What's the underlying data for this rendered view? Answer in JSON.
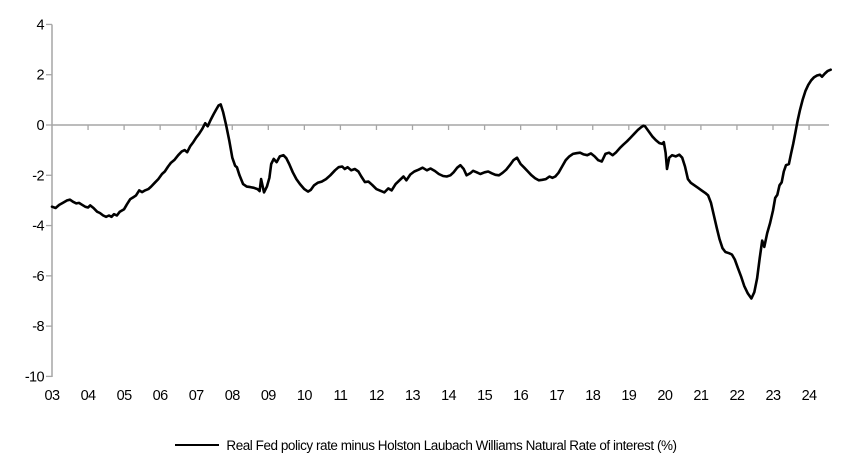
{
  "figure": {
    "background": "#ffffff"
  },
  "chart_data": {
    "type": "line",
    "title": "",
    "xlabel": "",
    "ylabel": "",
    "ylim": [
      -10,
      4
    ],
    "xlim_years": [
      2003.0,
      2024.6
    ],
    "grid": "off",
    "category_axis_at_zero": true,
    "y_ticks": [
      4,
      2,
      0,
      -2,
      -4,
      -6,
      -8,
      -10
    ],
    "x_tick_labels": [
      "03",
      "04",
      "05",
      "06",
      "07",
      "08",
      "09",
      "10",
      "11",
      "12",
      "13",
      "14",
      "15",
      "16",
      "17",
      "18",
      "19",
      "20",
      "21",
      "22",
      "23",
      "24"
    ],
    "legend": {
      "position": "bottom-center",
      "entries": [
        "Real Fed policy rate minus Holston Laubach Williams Natural Rate of interest (%)"
      ]
    },
    "colors": {
      "series": "#000000",
      "axis": "#a6a6a6",
      "text": "#000000",
      "background": "#ffffff"
    },
    "series": [
      {
        "name": "Real Fed policy rate minus Holston Laubach Williams Natural Rate of interest (%)",
        "points": [
          [
            2003.0,
            -3.25
          ],
          [
            2003.1,
            -3.3
          ],
          [
            2003.2,
            -3.18
          ],
          [
            2003.3,
            -3.1
          ],
          [
            2003.42,
            -3.0
          ],
          [
            2003.5,
            -2.97
          ],
          [
            2003.58,
            -3.05
          ],
          [
            2003.67,
            -3.12
          ],
          [
            2003.75,
            -3.1
          ],
          [
            2003.83,
            -3.17
          ],
          [
            2003.92,
            -3.25
          ],
          [
            2004.0,
            -3.28
          ],
          [
            2004.06,
            -3.2
          ],
          [
            2004.15,
            -3.3
          ],
          [
            2004.25,
            -3.45
          ],
          [
            2004.33,
            -3.5
          ],
          [
            2004.42,
            -3.6
          ],
          [
            2004.5,
            -3.65
          ],
          [
            2004.58,
            -3.6
          ],
          [
            2004.65,
            -3.65
          ],
          [
            2004.72,
            -3.55
          ],
          [
            2004.8,
            -3.6
          ],
          [
            2004.88,
            -3.45
          ],
          [
            2005.0,
            -3.35
          ],
          [
            2005.08,
            -3.15
          ],
          [
            2005.17,
            -2.95
          ],
          [
            2005.25,
            -2.88
          ],
          [
            2005.33,
            -2.8
          ],
          [
            2005.42,
            -2.6
          ],
          [
            2005.5,
            -2.67
          ],
          [
            2005.58,
            -2.6
          ],
          [
            2005.67,
            -2.55
          ],
          [
            2005.75,
            -2.45
          ],
          [
            2005.85,
            -2.3
          ],
          [
            2005.95,
            -2.15
          ],
          [
            2006.05,
            -1.95
          ],
          [
            2006.13,
            -1.85
          ],
          [
            2006.22,
            -1.65
          ],
          [
            2006.3,
            -1.5
          ],
          [
            2006.4,
            -1.38
          ],
          [
            2006.5,
            -1.2
          ],
          [
            2006.6,
            -1.05
          ],
          [
            2006.68,
            -1.0
          ],
          [
            2006.75,
            -1.08
          ],
          [
            2006.83,
            -0.85
          ],
          [
            2006.92,
            -0.68
          ],
          [
            2007.0,
            -0.5
          ],
          [
            2007.08,
            -0.35
          ],
          [
            2007.17,
            -0.15
          ],
          [
            2007.25,
            0.07
          ],
          [
            2007.32,
            -0.05
          ],
          [
            2007.4,
            0.2
          ],
          [
            2007.48,
            0.42
          ],
          [
            2007.55,
            0.6
          ],
          [
            2007.62,
            0.78
          ],
          [
            2007.68,
            0.82
          ],
          [
            2007.75,
            0.5
          ],
          [
            2007.83,
            0.0
          ],
          [
            2007.92,
            -0.65
          ],
          [
            2008.0,
            -1.3
          ],
          [
            2008.08,
            -1.62
          ],
          [
            2008.13,
            -1.68
          ],
          [
            2008.2,
            -2.0
          ],
          [
            2008.3,
            -2.35
          ],
          [
            2008.4,
            -2.45
          ],
          [
            2008.5,
            -2.47
          ],
          [
            2008.6,
            -2.5
          ],
          [
            2008.7,
            -2.55
          ],
          [
            2008.76,
            -2.63
          ],
          [
            2008.8,
            -2.15
          ],
          [
            2008.88,
            -2.68
          ],
          [
            2008.96,
            -2.45
          ],
          [
            2009.03,
            -2.1
          ],
          [
            2009.08,
            -1.55
          ],
          [
            2009.15,
            -1.35
          ],
          [
            2009.23,
            -1.48
          ],
          [
            2009.32,
            -1.25
          ],
          [
            2009.42,
            -1.2
          ],
          [
            2009.5,
            -1.32
          ],
          [
            2009.58,
            -1.55
          ],
          [
            2009.68,
            -1.88
          ],
          [
            2009.78,
            -2.15
          ],
          [
            2009.88,
            -2.35
          ],
          [
            2010.0,
            -2.55
          ],
          [
            2010.1,
            -2.65
          ],
          [
            2010.18,
            -2.58
          ],
          [
            2010.27,
            -2.4
          ],
          [
            2010.37,
            -2.3
          ],
          [
            2010.48,
            -2.25
          ],
          [
            2010.6,
            -2.15
          ],
          [
            2010.72,
            -2.0
          ],
          [
            2010.85,
            -1.8
          ],
          [
            2010.95,
            -1.68
          ],
          [
            2011.05,
            -1.65
          ],
          [
            2011.12,
            -1.75
          ],
          [
            2011.2,
            -1.68
          ],
          [
            2011.3,
            -1.8
          ],
          [
            2011.4,
            -1.75
          ],
          [
            2011.5,
            -1.85
          ],
          [
            2011.58,
            -2.05
          ],
          [
            2011.68,
            -2.27
          ],
          [
            2011.78,
            -2.25
          ],
          [
            2011.88,
            -2.38
          ],
          [
            2012.0,
            -2.55
          ],
          [
            2012.12,
            -2.62
          ],
          [
            2012.22,
            -2.68
          ],
          [
            2012.33,
            -2.52
          ],
          [
            2012.42,
            -2.6
          ],
          [
            2012.53,
            -2.35
          ],
          [
            2012.64,
            -2.2
          ],
          [
            2012.75,
            -2.05
          ],
          [
            2012.83,
            -2.2
          ],
          [
            2012.94,
            -1.97
          ],
          [
            2013.05,
            -1.85
          ],
          [
            2013.17,
            -1.78
          ],
          [
            2013.28,
            -1.7
          ],
          [
            2013.4,
            -1.8
          ],
          [
            2013.5,
            -1.73
          ],
          [
            2013.62,
            -1.83
          ],
          [
            2013.73,
            -1.95
          ],
          [
            2013.85,
            -2.03
          ],
          [
            2013.95,
            -2.05
          ],
          [
            2014.05,
            -2.0
          ],
          [
            2014.14,
            -1.88
          ],
          [
            2014.24,
            -1.7
          ],
          [
            2014.33,
            -1.6
          ],
          [
            2014.42,
            -1.75
          ],
          [
            2014.5,
            -2.0
          ],
          [
            2014.6,
            -1.92
          ],
          [
            2014.68,
            -1.82
          ],
          [
            2014.78,
            -1.88
          ],
          [
            2014.88,
            -1.95
          ],
          [
            2015.0,
            -1.88
          ],
          [
            2015.1,
            -1.85
          ],
          [
            2015.2,
            -1.92
          ],
          [
            2015.3,
            -1.98
          ],
          [
            2015.4,
            -2.0
          ],
          [
            2015.5,
            -1.9
          ],
          [
            2015.6,
            -1.78
          ],
          [
            2015.7,
            -1.6
          ],
          [
            2015.8,
            -1.4
          ],
          [
            2015.9,
            -1.3
          ],
          [
            2016.0,
            -1.55
          ],
          [
            2016.1,
            -1.7
          ],
          [
            2016.2,
            -1.85
          ],
          [
            2016.3,
            -2.0
          ],
          [
            2016.4,
            -2.12
          ],
          [
            2016.5,
            -2.2
          ],
          [
            2016.6,
            -2.18
          ],
          [
            2016.7,
            -2.15
          ],
          [
            2016.8,
            -2.05
          ],
          [
            2016.88,
            -2.1
          ],
          [
            2016.96,
            -2.05
          ],
          [
            2017.05,
            -1.9
          ],
          [
            2017.15,
            -1.65
          ],
          [
            2017.25,
            -1.4
          ],
          [
            2017.35,
            -1.25
          ],
          [
            2017.45,
            -1.15
          ],
          [
            2017.55,
            -1.12
          ],
          [
            2017.65,
            -1.1
          ],
          [
            2017.75,
            -1.17
          ],
          [
            2017.85,
            -1.2
          ],
          [
            2017.95,
            -1.13
          ],
          [
            2018.05,
            -1.25
          ],
          [
            2018.15,
            -1.4
          ],
          [
            2018.25,
            -1.45
          ],
          [
            2018.35,
            -1.15
          ],
          [
            2018.45,
            -1.1
          ],
          [
            2018.55,
            -1.2
          ],
          [
            2018.65,
            -1.08
          ],
          [
            2018.75,
            -0.92
          ],
          [
            2018.85,
            -0.78
          ],
          [
            2018.95,
            -0.65
          ],
          [
            2019.05,
            -0.5
          ],
          [
            2019.15,
            -0.35
          ],
          [
            2019.25,
            -0.2
          ],
          [
            2019.35,
            -0.08
          ],
          [
            2019.4,
            -0.03
          ],
          [
            2019.45,
            -0.05
          ],
          [
            2019.55,
            -0.25
          ],
          [
            2019.65,
            -0.45
          ],
          [
            2019.75,
            -0.6
          ],
          [
            2019.85,
            -0.72
          ],
          [
            2019.93,
            -0.75
          ],
          [
            2019.97,
            -0.68
          ],
          [
            2020.02,
            -1.1
          ],
          [
            2020.06,
            -1.75
          ],
          [
            2020.12,
            -1.3
          ],
          [
            2020.2,
            -1.2
          ],
          [
            2020.3,
            -1.25
          ],
          [
            2020.4,
            -1.18
          ],
          [
            2020.48,
            -1.3
          ],
          [
            2020.56,
            -1.65
          ],
          [
            2020.64,
            -2.15
          ],
          [
            2020.72,
            -2.3
          ],
          [
            2020.82,
            -2.4
          ],
          [
            2020.92,
            -2.5
          ],
          [
            2021.02,
            -2.6
          ],
          [
            2021.12,
            -2.7
          ],
          [
            2021.2,
            -2.8
          ],
          [
            2021.28,
            -3.1
          ],
          [
            2021.36,
            -3.6
          ],
          [
            2021.44,
            -4.1
          ],
          [
            2021.52,
            -4.55
          ],
          [
            2021.6,
            -4.9
          ],
          [
            2021.68,
            -5.05
          ],
          [
            2021.78,
            -5.1
          ],
          [
            2021.86,
            -5.15
          ],
          [
            2021.94,
            -5.35
          ],
          [
            2022.03,
            -5.7
          ],
          [
            2022.12,
            -6.05
          ],
          [
            2022.2,
            -6.4
          ],
          [
            2022.3,
            -6.7
          ],
          [
            2022.4,
            -6.9
          ],
          [
            2022.48,
            -6.65
          ],
          [
            2022.56,
            -6.1
          ],
          [
            2022.63,
            -5.3
          ],
          [
            2022.7,
            -4.6
          ],
          [
            2022.76,
            -4.85
          ],
          [
            2022.84,
            -4.3
          ],
          [
            2022.92,
            -3.9
          ],
          [
            2023.0,
            -3.4
          ],
          [
            2023.06,
            -2.9
          ],
          [
            2023.12,
            -2.78
          ],
          [
            2023.18,
            -2.4
          ],
          [
            2023.24,
            -2.28
          ],
          [
            2023.3,
            -1.85
          ],
          [
            2023.36,
            -1.6
          ],
          [
            2023.44,
            -1.55
          ],
          [
            2023.5,
            -1.15
          ],
          [
            2023.56,
            -0.75
          ],
          [
            2023.62,
            -0.3
          ],
          [
            2023.68,
            0.15
          ],
          [
            2023.75,
            0.6
          ],
          [
            2023.82,
            1.0
          ],
          [
            2023.9,
            1.35
          ],
          [
            2023.98,
            1.6
          ],
          [
            2024.06,
            1.78
          ],
          [
            2024.14,
            1.9
          ],
          [
            2024.22,
            1.97
          ],
          [
            2024.3,
            2.0
          ],
          [
            2024.36,
            1.92
          ],
          [
            2024.44,
            2.05
          ],
          [
            2024.52,
            2.15
          ],
          [
            2024.6,
            2.2
          ]
        ]
      }
    ]
  }
}
